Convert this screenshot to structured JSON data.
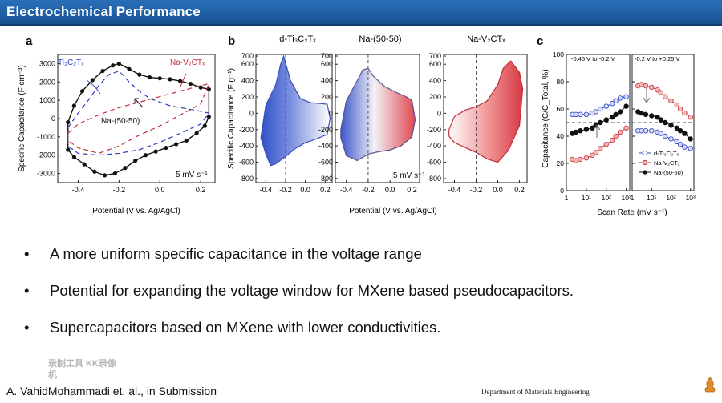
{
  "slide": {
    "title": "Electrochemical Performance",
    "bullets": [
      "A more uniform specific capacitance in the voltage range",
      "Potential for expanding the voltage window for MXene based pseudocapacitors.",
      "Supercapacitors based on MXene with lower conductivities."
    ],
    "bullet_symbol": "•",
    "citation": "A. VahidMohammadi et. al., in Submission",
    "affiliation": "Department of Materials Engineering",
    "recorder_watermark": "录制工具 KK录像机",
    "colors": {
      "title_bar": "#1f5fa6",
      "blue": "#2b3fbf",
      "red": "#c0303a",
      "black": "#111111"
    }
  },
  "panel_a": {
    "label": "a",
    "ylabel": "Specific Capacitance (F cm⁻³)",
    "xlabel": "Potential (V vs. Ag/AgCl)",
    "xticks": [
      "-0.4",
      "-0.2",
      "0.0",
      "0.2"
    ],
    "yticks": [
      "3000",
      "2000",
      "1000",
      "0",
      "-1000",
      "-2000",
      "-3000"
    ],
    "legend_ti": "Ti₃C₂Tₓ",
    "legend_v": "Na-V₂CTₓ",
    "legend_mix": "Na-(50-50)",
    "rate": "5 mV s⁻¹"
  },
  "panel_b": {
    "label": "b",
    "ylabel": "Specific Capacitance (F g⁻¹)",
    "xlabel": "Potential (V vs. Ag/AgCl)",
    "yticks": [
      "700",
      "600",
      "400",
      "200",
      "0",
      "-200",
      "-400",
      "-600",
      "-800"
    ],
    "xticks": [
      "-0.4",
      "-0.2",
      "0.0",
      "0.2"
    ],
    "sub_titles": [
      "d-Ti₃C₂Tₓ",
      "Na-(50-50)",
      "Na-V₂CTₓ"
    ],
    "rate": "5 mV s⁻¹"
  },
  "panel_c": {
    "label": "c",
    "ylabel": "Capacitance (C/C_Total, %)",
    "xlabel": "Scan Rate (mV s⁻¹)",
    "yticks": [
      "100",
      "80",
      "60",
      "40",
      "20",
      "0"
    ],
    "xticks": [
      "1",
      "10¹",
      "10²",
      "10³"
    ],
    "window_left": "-0.45 V to -0.2 V",
    "window_right": "-0.2 V to +0.25 V",
    "legend": [
      "d-Ti₃C₂Tₓ",
      "Na-V₂CTₓ",
      "Na-(50-50)"
    ]
  },
  "chart_data": [
    {
      "type": "line",
      "title": "",
      "xlabel": "Potential (V vs. Ag/AgCl)",
      "ylabel": "Specific Capacitance (F cm⁻³)",
      "xlim": [
        -0.5,
        0.27
      ],
      "ylim": [
        -3500,
        3500
      ],
      "series": [
        {
          "name": "Na-(50-50)",
          "style": "solid-markers",
          "color": "#111111",
          "x": [
            -0.45,
            -0.42,
            -0.38,
            -0.33,
            -0.28,
            -0.23,
            -0.2,
            -0.15,
            -0.1,
            -0.05,
            0.0,
            0.05,
            0.1,
            0.15,
            0.2,
            0.24,
            0.24,
            0.22,
            0.18,
            0.13,
            0.08,
            0.03,
            -0.02,
            -0.07,
            -0.12,
            -0.17,
            -0.22,
            -0.27,
            -0.32,
            -0.37,
            -0.42,
            -0.45
          ],
          "y": [
            -200,
            700,
            1500,
            2100,
            2600,
            2900,
            3000,
            2700,
            2400,
            2250,
            2200,
            2150,
            2050,
            1900,
            1700,
            1600,
            100,
            -400,
            -800,
            -1200,
            -1400,
            -1600,
            -1800,
            -2000,
            -2300,
            -2700,
            -3000,
            -3100,
            -2900,
            -2500,
            -2100,
            -1700
          ]
        },
        {
          "name": "Ti₃C₂Tₓ",
          "style": "dashed",
          "color": "#2b3fbf",
          "x": [
            -0.45,
            -0.4,
            -0.35,
            -0.3,
            -0.25,
            -0.2,
            -0.15,
            -0.1,
            -0.05,
            0.0,
            0.05,
            0.1,
            0.15,
            0.2,
            0.24,
            0.2,
            0.1,
            0.0,
            -0.1,
            -0.2,
            -0.3,
            -0.4,
            -0.45
          ],
          "y": [
            -500,
            300,
            1000,
            1800,
            2400,
            2600,
            2000,
            1500,
            1100,
            900,
            700,
            600,
            500,
            400,
            300,
            -300,
            -800,
            -1300,
            -1700,
            -1900,
            -2000,
            -1900,
            -1500
          ]
        },
        {
          "name": "Na-V₂CTₓ",
          "style": "dashed",
          "color": "#c0303a",
          "x": [
            -0.45,
            -0.4,
            -0.3,
            -0.2,
            -0.1,
            0.0,
            0.1,
            0.2,
            0.24,
            0.2,
            0.1,
            0.0,
            -0.1,
            -0.2,
            -0.3,
            -0.4,
            -0.45
          ],
          "y": [
            -800,
            -300,
            200,
            600,
            900,
            1200,
            1500,
            1800,
            1900,
            800,
            200,
            -400,
            -900,
            -1500,
            -1900,
            -1600,
            -1200
          ]
        }
      ],
      "annotations": [
        "Ti₃C₂Tₓ",
        "Na-V₂CTₓ",
        "Na-(50-50)",
        "5 mV s⁻¹"
      ]
    },
    {
      "type": "area",
      "title": "d-Ti₃C₂Tₓ",
      "xlabel": "Potential (V vs. Ag/AgCl)",
      "ylabel": "Specific Capacitance (F g⁻¹)",
      "xlim": [
        -0.5,
        0.27
      ],
      "ylim": [
        -850,
        720
      ],
      "x": [
        -0.45,
        -0.4,
        -0.3,
        -0.25,
        -0.22,
        -0.15,
        -0.05,
        0.05,
        0.15,
        0.22,
        0.25,
        0.22,
        0.1,
        0.0,
        -0.1,
        -0.2,
        -0.3,
        -0.35,
        -0.4,
        -0.45
      ],
      "y": [
        -300,
        100,
        350,
        600,
        700,
        400,
        180,
        130,
        120,
        110,
        -60,
        -260,
        -320,
        -360,
        -430,
        -530,
        -620,
        -640,
        -500,
        -300
      ]
    },
    {
      "type": "area",
      "title": "Na-(50-50)",
      "xlabel": "Potential (V vs. Ag/AgCl)",
      "ylabel": "",
      "xlim": [
        -0.5,
        0.27
      ],
      "ylim": [
        -850,
        720
      ],
      "x": [
        -0.45,
        -0.4,
        -0.3,
        -0.25,
        -0.2,
        -0.15,
        -0.05,
        0.05,
        0.15,
        0.2,
        0.23,
        0.2,
        0.1,
        0.0,
        -0.1,
        -0.2,
        -0.3,
        -0.4,
        -0.45
      ],
      "y": [
        -200,
        150,
        400,
        530,
        550,
        450,
        330,
        260,
        200,
        160,
        -80,
        -290,
        -400,
        -450,
        -470,
        -500,
        -580,
        -520,
        -300
      ]
    },
    {
      "type": "area",
      "title": "Na-V₂CTₓ",
      "xlabel": "Potential (V vs. Ag/AgCl)",
      "ylabel": "",
      "xlim": [
        -0.5,
        0.27
      ],
      "ylim": [
        -850,
        720
      ],
      "x": [
        -0.45,
        -0.4,
        -0.3,
        -0.2,
        -0.1,
        0.0,
        0.05,
        0.12,
        0.2,
        0.23,
        0.2,
        0.1,
        0.0,
        -0.1,
        -0.2,
        -0.3,
        -0.4,
        -0.45
      ],
      "y": [
        -200,
        -40,
        40,
        80,
        150,
        350,
        550,
        640,
        500,
        300,
        -150,
        -450,
        -600,
        -560,
        -480,
        -420,
        -360,
        -280
      ]
    },
    {
      "type": "line",
      "title": "",
      "xlabel": "Scan Rate (mV s⁻¹)",
      "ylabel": "Capacitance (C/C_Total, %)",
      "xscale": "log",
      "xlim": [
        1,
        1500
      ],
      "ylim": [
        0,
        100
      ],
      "window": "-0.45 V to -0.2 V",
      "series": [
        {
          "name": "d-Ti₃C₂Tₓ",
          "color": "#2b3fbf",
          "x": [
            2,
            3,
            5,
            10,
            20,
            30,
            50,
            100,
            200,
            300,
            500,
            1000
          ],
          "y": [
            56,
            56,
            56,
            56,
            57,
            58,
            60,
            62,
            64,
            66,
            68,
            69
          ]
        },
        {
          "name": "Na-V₂CTₓ",
          "color": "#c0303a",
          "x": [
            2,
            3,
            5,
            10,
            20,
            30,
            50,
            100,
            200,
            300,
            500,
            1000
          ],
          "y": [
            23,
            22,
            23,
            24,
            26,
            28,
            31,
            34,
            37,
            40,
            43,
            46
          ]
        },
        {
          "name": "Na-(50-50)",
          "color": "#111111",
          "x": [
            2,
            3,
            5,
            10,
            20,
            30,
            50,
            100,
            200,
            300,
            500,
            1000
          ],
          "y": [
            42,
            43,
            44,
            45,
            46,
            48,
            50,
            52,
            54,
            56,
            58,
            62
          ]
        }
      ]
    },
    {
      "type": "line",
      "title": "",
      "xlabel": "Scan Rate (mV s⁻¹)",
      "ylabel": "",
      "xscale": "log",
      "xlim": [
        1,
        1500
      ],
      "ylim": [
        0,
        100
      ],
      "window": "-0.2 V to +0.25 V",
      "series": [
        {
          "name": "d-Ti₃C₂Tₓ",
          "color": "#2b3fbf",
          "x": [
            2,
            3,
            5,
            10,
            20,
            30,
            50,
            100,
            200,
            300,
            500,
            1000
          ],
          "y": [
            44,
            44,
            44,
            44,
            43,
            42,
            40,
            38,
            36,
            34,
            32,
            31
          ]
        },
        {
          "name": "Na-V₂CTₓ",
          "color": "#c0303a",
          "x": [
            2,
            3,
            5,
            10,
            20,
            30,
            50,
            100,
            200,
            300,
            500,
            1000
          ],
          "y": [
            77,
            78,
            77,
            76,
            74,
            72,
            69,
            66,
            63,
            60,
            57,
            54
          ]
        },
        {
          "name": "Na-(50-50)",
          "color": "#111111",
          "x": [
            2,
            3,
            5,
            10,
            20,
            30,
            50,
            100,
            200,
            300,
            500,
            1000
          ],
          "y": [
            58,
            57,
            56,
            55,
            54,
            52,
            50,
            48,
            46,
            44,
            42,
            38
          ]
        }
      ]
    }
  ]
}
